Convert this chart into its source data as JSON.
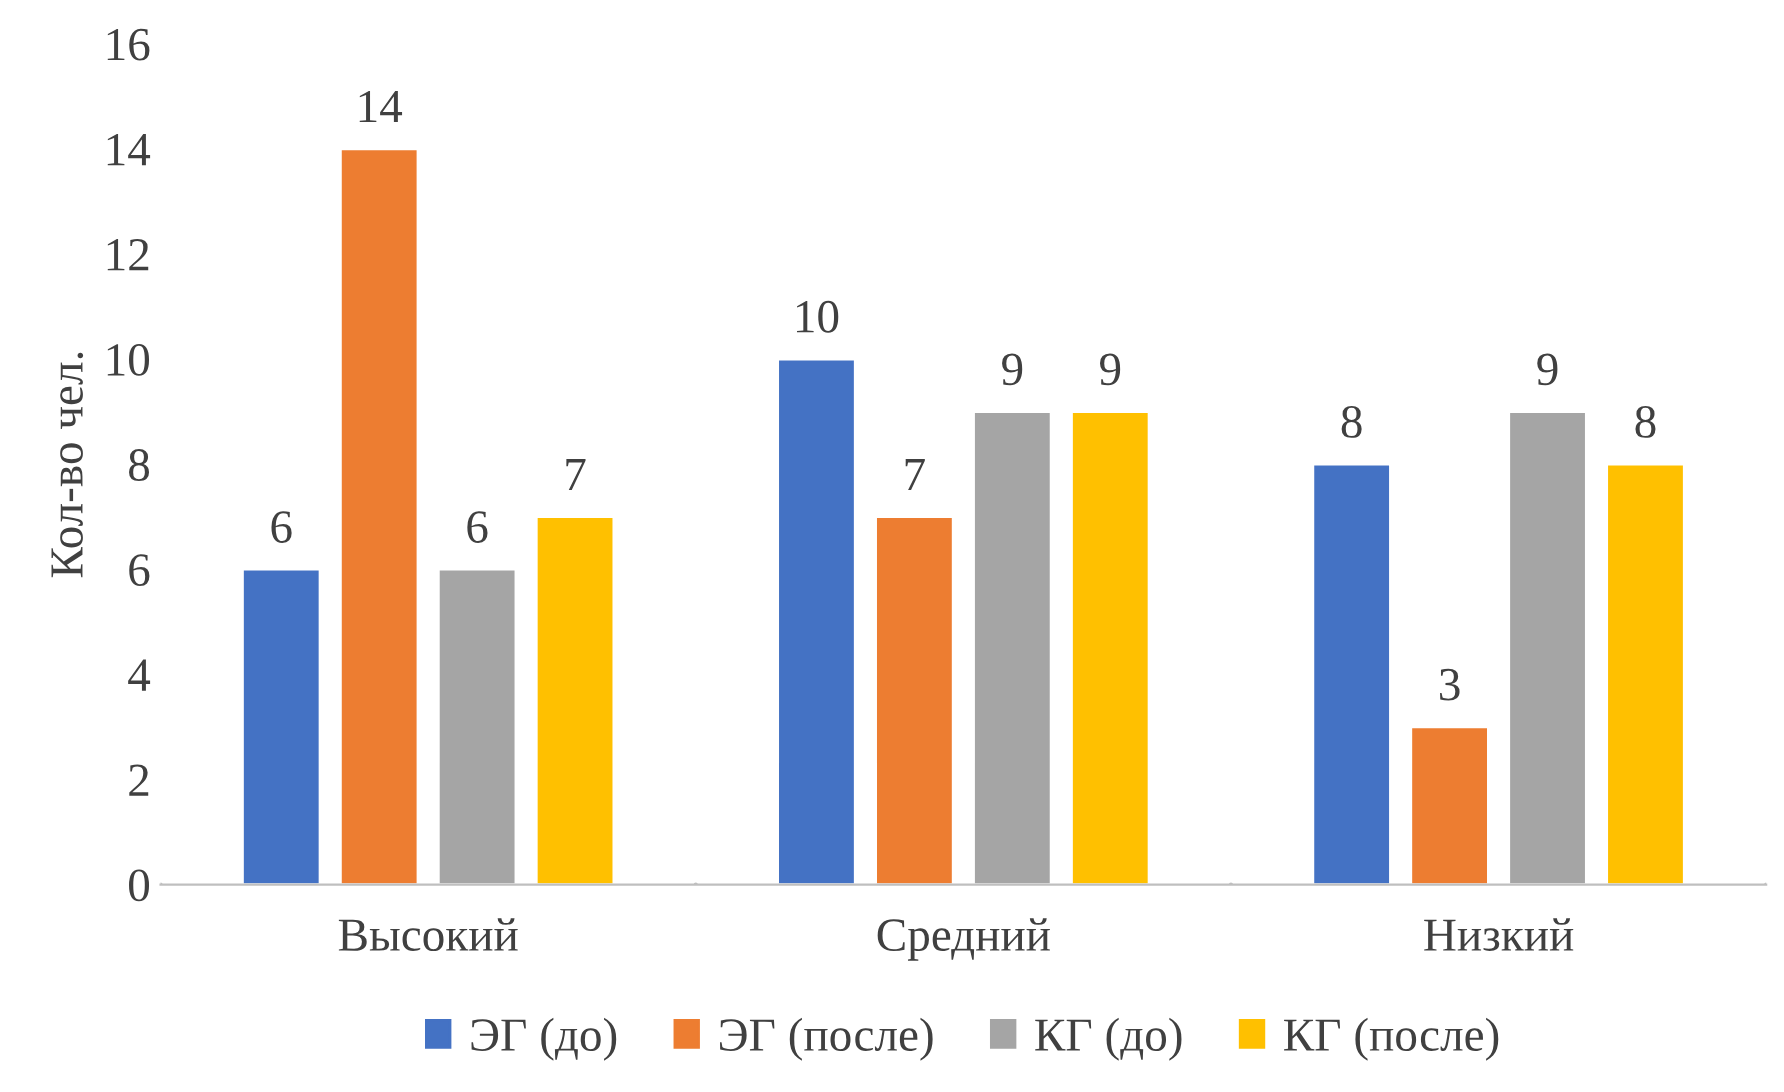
{
  "chart_data": {
    "type": "bar",
    "ylabel": "Кол-во чел.",
    "categories": [
      "Высокий",
      "Средний",
      "Низкий"
    ],
    "series": [
      {
        "name": "ЭГ (до)",
        "color": "#4472c4",
        "values": [
          6,
          10,
          8
        ]
      },
      {
        "name": "ЭГ (после)",
        "color": "#ed7d31",
        "values": [
          14,
          7,
          3
        ]
      },
      {
        "name": "КГ (до)",
        "color": "#a5a5a5",
        "values": [
          6,
          9,
          9
        ]
      },
      {
        "name": "КГ (после)",
        "color": "#ffc000",
        "values": [
          7,
          9,
          8
        ]
      }
    ],
    "ylim": [
      0,
      16
    ],
    "yticks": [
      0,
      2,
      4,
      6,
      8,
      10,
      12,
      14,
      16
    ],
    "data_labels": true,
    "grid": false,
    "legend": "bottom"
  }
}
